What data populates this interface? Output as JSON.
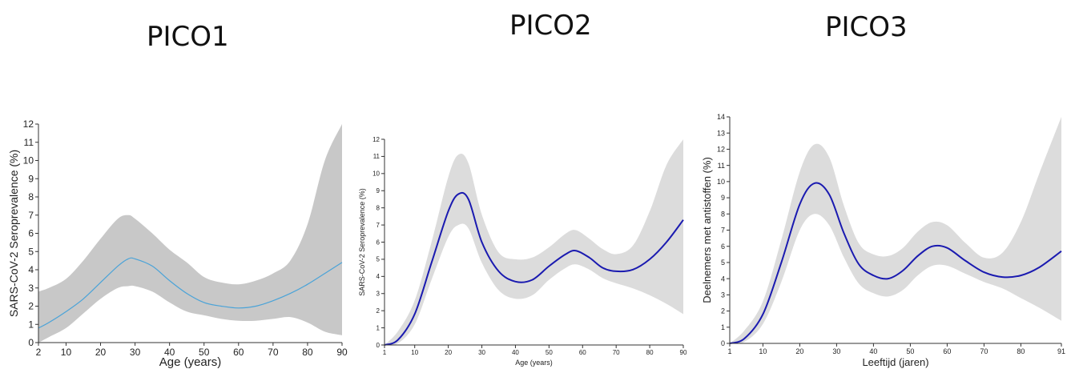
{
  "chart_data": [
    {
      "type": "line",
      "title": "PICO1",
      "xlabel": "Age (years)",
      "ylabel": "SARS-CoV-2 Seroprevalence (%)",
      "xlim": [
        2,
        90
      ],
      "ylim": [
        0,
        12
      ],
      "xticks": [
        2,
        10,
        20,
        30,
        40,
        50,
        60,
        70,
        80,
        90
      ],
      "yticks": [
        0,
        1,
        2,
        3,
        4,
        5,
        6,
        7,
        8,
        9,
        10,
        11,
        12
      ],
      "grid": false,
      "line_color": "#4aa3d8",
      "band_color": "#c8c8c8",
      "series": [
        {
          "x": [
            2,
            5,
            10,
            15,
            20,
            25,
            28,
            30,
            35,
            40,
            45,
            50,
            55,
            60,
            65,
            70,
            75,
            80,
            85,
            90
          ],
          "y": [
            0.8,
            1.1,
            1.7,
            2.4,
            3.3,
            4.2,
            4.6,
            4.6,
            4.2,
            3.4,
            2.7,
            2.2,
            2.0,
            1.9,
            2.0,
            2.3,
            2.7,
            3.2,
            3.8,
            4.4
          ],
          "lower": [
            0.0,
            0.3,
            0.8,
            1.6,
            2.4,
            3.0,
            3.1,
            3.1,
            2.8,
            2.2,
            1.7,
            1.5,
            1.3,
            1.2,
            1.2,
            1.3,
            1.4,
            1.1,
            0.6,
            0.4
          ],
          "upper": [
            2.8,
            3.0,
            3.5,
            4.5,
            5.7,
            6.8,
            7.0,
            6.8,
            6.0,
            5.1,
            4.4,
            3.6,
            3.3,
            3.2,
            3.4,
            3.8,
            4.5,
            6.5,
            10.0,
            12.0
          ]
        }
      ]
    },
    {
      "type": "line",
      "title": "PICO2",
      "xlabel": "Age (years)",
      "ylabel": "SARS-CoV-2 Seroprevalence (%)",
      "xlim": [
        1,
        90
      ],
      "ylim": [
        0,
        12
      ],
      "xticks": [
        1,
        10,
        20,
        30,
        40,
        50,
        60,
        70,
        80,
        90
      ],
      "yticks": [
        0,
        1,
        2,
        3,
        4,
        5,
        6,
        7,
        8,
        9,
        10,
        11,
        12
      ],
      "grid": false,
      "line_color": "#1a1ab0",
      "band_color": "#dcdcdc",
      "series": [
        {
          "x": [
            1,
            5,
            10,
            15,
            20,
            23,
            26,
            30,
            35,
            40,
            45,
            50,
            55,
            58,
            62,
            66,
            70,
            75,
            80,
            85,
            90
          ],
          "y": [
            0.0,
            0.3,
            1.8,
            4.8,
            7.8,
            8.8,
            8.5,
            6.0,
            4.3,
            3.7,
            3.8,
            4.6,
            5.3,
            5.5,
            5.1,
            4.5,
            4.3,
            4.4,
            5.0,
            6.0,
            7.3
          ],
          "lower": [
            0.0,
            0.1,
            1.2,
            3.8,
            6.3,
            7.0,
            6.8,
            4.8,
            3.2,
            2.7,
            2.9,
            3.8,
            4.5,
            4.7,
            4.4,
            3.9,
            3.6,
            3.3,
            2.9,
            2.4,
            1.8
          ],
          "upper": [
            0.0,
            0.8,
            2.6,
            6.0,
            9.8,
            11.1,
            10.6,
            7.6,
            5.4,
            5.0,
            5.1,
            5.7,
            6.5,
            6.7,
            6.2,
            5.6,
            5.3,
            5.8,
            7.8,
            10.5,
            12.0
          ]
        }
      ]
    },
    {
      "type": "line",
      "title": "PICO3",
      "xlabel": "Leeftijd (jaren)",
      "ylabel": "Deelnemers met antistoffen (%)",
      "xlim": [
        1,
        91
      ],
      "ylim": [
        0,
        14
      ],
      "xticks": [
        1,
        10,
        20,
        30,
        40,
        50,
        60,
        70,
        80,
        91
      ],
      "yticks": [
        0,
        1,
        2,
        3,
        4,
        5,
        6,
        7,
        8,
        9,
        10,
        11,
        12,
        13,
        14
      ],
      "grid": false,
      "line_color": "#1a1ab0",
      "band_color": "#dcdcdc",
      "series": [
        {
          "x": [
            1,
            5,
            10,
            15,
            20,
            24,
            28,
            32,
            36,
            40,
            44,
            48,
            52,
            56,
            60,
            65,
            70,
            75,
            80,
            85,
            91
          ],
          "y": [
            0.0,
            0.3,
            1.8,
            5.0,
            8.6,
            9.9,
            9.2,
            6.8,
            4.9,
            4.2,
            4.0,
            4.5,
            5.4,
            6.0,
            5.9,
            5.1,
            4.4,
            4.1,
            4.2,
            4.7,
            5.7
          ],
          "lower": [
            0.0,
            0.1,
            1.2,
            3.8,
            7.0,
            8.0,
            7.3,
            5.3,
            3.7,
            3.1,
            2.9,
            3.3,
            4.2,
            4.8,
            4.8,
            4.3,
            3.8,
            3.4,
            2.8,
            2.2,
            1.4
          ],
          "upper": [
            0.0,
            0.8,
            2.6,
            6.4,
            10.6,
            12.3,
            11.5,
            8.5,
            6.2,
            5.5,
            5.4,
            5.9,
            6.9,
            7.5,
            7.3,
            6.2,
            5.3,
            5.6,
            7.5,
            10.5,
            14.0
          ]
        }
      ]
    }
  ]
}
